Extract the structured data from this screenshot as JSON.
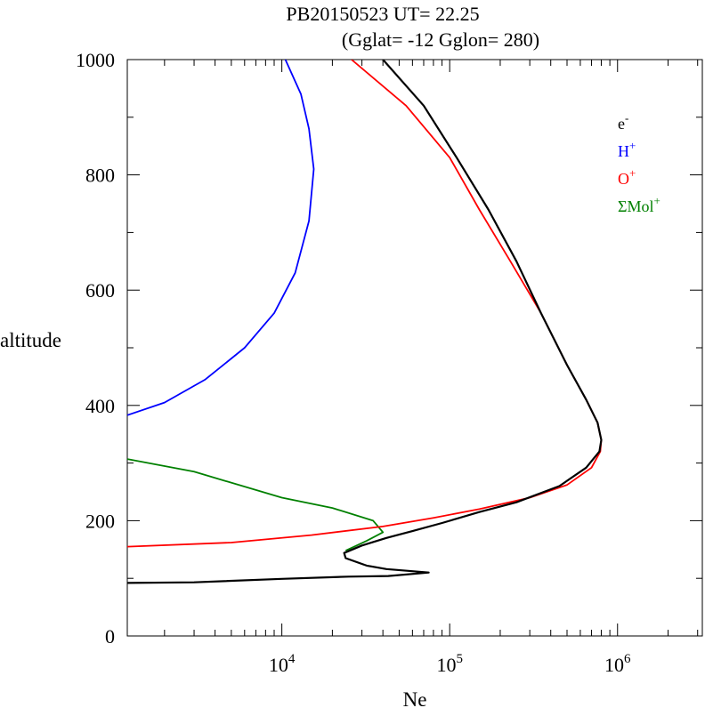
{
  "chart_data": {
    "type": "line",
    "title": "PB20150523   UT=  22.25",
    "subtitle": "(Gglat= -12   Gglon=  280)",
    "xlabel": "Ne",
    "ylabel": "altitude",
    "xscale": "log",
    "xlim": [
      1200,
      3200000
    ],
    "ylim": [
      0,
      1000
    ],
    "x_ticks": [
      {
        "value": 10000,
        "base": "10",
        "exp": "4"
      },
      {
        "value": 100000,
        "base": "10",
        "exp": "5"
      },
      {
        "value": 1000000,
        "base": "10",
        "exp": "6"
      }
    ],
    "y_ticks": [
      {
        "value": 0,
        "label": "0"
      },
      {
        "value": 200,
        "label": "200"
      },
      {
        "value": 400,
        "label": "400"
      },
      {
        "value": 600,
        "label": "600"
      },
      {
        "value": 800,
        "label": "800"
      },
      {
        "value": 1000,
        "label": "1000"
      }
    ],
    "legend_position": "top-right",
    "series": [
      {
        "name": "e-",
        "label_base": "e",
        "label_sup": "-",
        "color": "#000000",
        "points": [
          [
            1200,
            92
          ],
          [
            3000,
            93
          ],
          [
            10000,
            99
          ],
          [
            25000,
            103
          ],
          [
            43000,
            104
          ],
          [
            75000,
            110
          ],
          [
            42000,
            116
          ],
          [
            32000,
            122
          ],
          [
            24000,
            135
          ],
          [
            23500,
            144
          ],
          [
            30000,
            157
          ],
          [
            42000,
            170
          ],
          [
            60000,
            182
          ],
          [
            90000,
            196
          ],
          [
            150000,
            215
          ],
          [
            250000,
            232
          ],
          [
            450000,
            260
          ],
          [
            650000,
            292
          ],
          [
            780000,
            320
          ],
          [
            800000,
            340
          ],
          [
            760000,
            370
          ],
          [
            650000,
            410
          ],
          [
            500000,
            470
          ],
          [
            350000,
            560
          ],
          [
            250000,
            650
          ],
          [
            170000,
            740
          ],
          [
            110000,
            830
          ],
          [
            70000,
            920
          ],
          [
            40000,
            1000
          ]
        ]
      },
      {
        "name": "H+",
        "label_base": "H",
        "label_sup": "+",
        "color": "#0000ff",
        "points": [
          [
            1200,
            383
          ],
          [
            2000,
            405
          ],
          [
            3500,
            445
          ],
          [
            6000,
            500
          ],
          [
            9000,
            560
          ],
          [
            12000,
            630
          ],
          [
            14500,
            720
          ],
          [
            15500,
            810
          ],
          [
            14500,
            880
          ],
          [
            13000,
            940
          ],
          [
            10500,
            1000
          ]
        ]
      },
      {
        "name": "O+",
        "label_base": "O",
        "label_sup": "+",
        "color": "#ff0000",
        "points": [
          [
            1200,
            155
          ],
          [
            5000,
            162
          ],
          [
            15000,
            175
          ],
          [
            40000,
            190
          ],
          [
            80000,
            205
          ],
          [
            150000,
            220
          ],
          [
            300000,
            240
          ],
          [
            500000,
            262
          ],
          [
            700000,
            292
          ],
          [
            790000,
            320
          ],
          [
            800000,
            340
          ],
          [
            760000,
            370
          ],
          [
            650000,
            410
          ],
          [
            500000,
            470
          ],
          [
            350000,
            560
          ],
          [
            230000,
            650
          ],
          [
            150000,
            740
          ],
          [
            100000,
            830
          ],
          [
            55000,
            920
          ],
          [
            26000,
            1000
          ]
        ]
      },
      {
        "name": "ΣMol+",
        "label_base": "ΣMol",
        "label_sup": "+",
        "color": "#008000",
        "points": [
          [
            1200,
            307
          ],
          [
            3000,
            285
          ],
          [
            10000,
            240
          ],
          [
            20000,
            222
          ],
          [
            35000,
            200
          ],
          [
            40000,
            180
          ],
          [
            32000,
            165
          ],
          [
            24000,
            148
          ]
        ]
      }
    ]
  }
}
